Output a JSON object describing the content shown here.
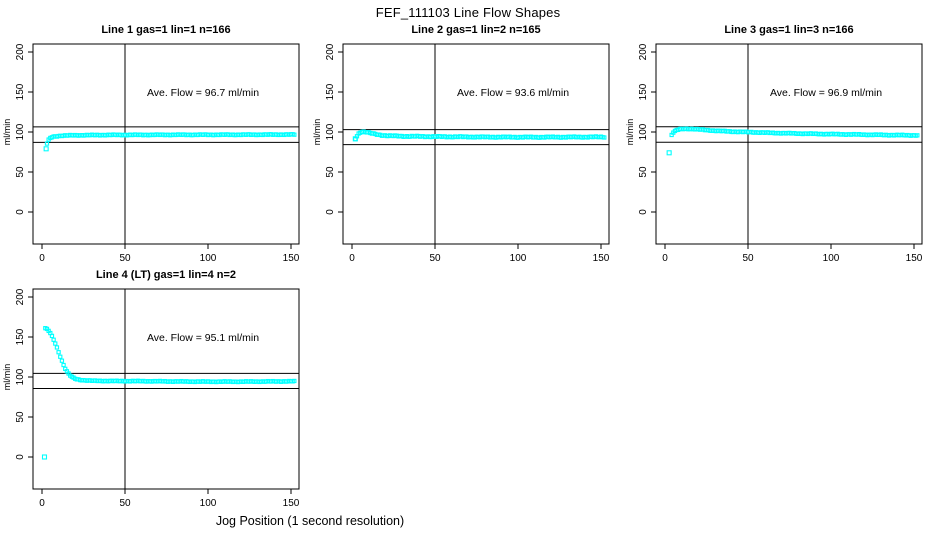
{
  "page": {
    "title": "FEF_111103  Line Flow Shapes",
    "xlabel": "Jog Position (1 second resolution)"
  },
  "style": {
    "point_color": "#00FFFF",
    "axis_color": "#000000",
    "background": "#FFFFFF"
  },
  "chart_data": [
    {
      "type": "scatter",
      "title": "Line 1 gas=1 lin=1 n=166",
      "annotation": "Ave. Flow =  96.7  ml/min",
      "ave_flow": 96.7,
      "ylabel": "ml/min",
      "x_ticks": [
        0,
        50,
        100,
        150
      ],
      "y_ticks": [
        0,
        50,
        100,
        150,
        200
      ],
      "xlim": [
        -6,
        156
      ],
      "ylim": [
        -41,
        210
      ],
      "vline_x": 50,
      "hlines": [
        106.4,
        87.0
      ],
      "marker": "open-square",
      "outliers": [
        [
          2.5,
          79
        ]
      ],
      "keypoints": [
        [
          3,
          85.5
        ],
        [
          3.5,
          88
        ],
        [
          4,
          90
        ],
        [
          5,
          92.5
        ],
        [
          6,
          93.6
        ],
        [
          8,
          94.6
        ],
        [
          12,
          95.4
        ],
        [
          20,
          95.9
        ],
        [
          40,
          96.3
        ],
        [
          80,
          96.5
        ],
        [
          120,
          96.6
        ],
        [
          152,
          96.8
        ]
      ],
      "x_range": [
        3,
        152
      ],
      "jitter": 0.55
    },
    {
      "type": "scatter",
      "title": "Line 2 gas=1 lin=2 n=165",
      "annotation": "Ave. Flow =  93.6  ml/min",
      "ave_flow": 93.6,
      "ylabel": "ml/min",
      "x_ticks": [
        0,
        50,
        100,
        150
      ],
      "y_ticks": [
        0,
        50,
        100,
        150,
        200
      ],
      "xlim": [
        -6,
        156
      ],
      "ylim": [
        -41,
        210
      ],
      "vline_x": 50,
      "hlines": [
        103.0,
        84.2
      ],
      "marker": "open-square",
      "outliers": [
        [
          2,
          91.5
        ]
      ],
      "keypoints": [
        [
          2,
          91.5
        ],
        [
          3,
          94.5
        ],
        [
          4,
          98
        ],
        [
          5,
          99.8
        ],
        [
          6,
          100.4
        ],
        [
          8,
          100.2
        ],
        [
          10,
          99.2
        ],
        [
          13,
          97.6
        ],
        [
          17,
          96.2
        ],
        [
          22,
          95.3
        ],
        [
          30,
          94.7
        ],
        [
          50,
          94.2
        ],
        [
          80,
          93.7
        ],
        [
          110,
          93.5
        ],
        [
          152,
          93.8
        ]
      ],
      "x_range": [
        2,
        152
      ],
      "jitter": 0.8
    },
    {
      "type": "scatter",
      "title": "Line 3 gas=1 lin=3 n=166",
      "annotation": "Ave. Flow =  96.9  ml/min",
      "ave_flow": 96.9,
      "ylabel": "ml/min",
      "x_ticks": [
        0,
        50,
        100,
        150
      ],
      "y_ticks": [
        0,
        50,
        100,
        150,
        200
      ],
      "xlim": [
        -6,
        156
      ],
      "ylim": [
        -41,
        210
      ],
      "vline_x": 50,
      "hlines": [
        106.6,
        87.2
      ],
      "marker": "open-square",
      "outliers": [
        [
          2.5,
          74
        ]
      ],
      "keypoints": [
        [
          3.5,
          95
        ],
        [
          5,
          99.5
        ],
        [
          7,
          102.3
        ],
        [
          9,
          103.4
        ],
        [
          12,
          104
        ],
        [
          16,
          103.9
        ],
        [
          22,
          102.9
        ],
        [
          30,
          101.6
        ],
        [
          40,
          100.5
        ],
        [
          50,
          99.9
        ],
        [
          65,
          98.8
        ],
        [
          80,
          98.1
        ],
        [
          100,
          97.3
        ],
        [
          120,
          96.7
        ],
        [
          135,
          96.2
        ],
        [
          152,
          95.8
        ]
      ],
      "x_range": [
        4,
        152
      ],
      "jitter": 0.6
    },
    {
      "type": "scatter",
      "title": "Line 4 (LT) gas=1 lin=4 n=2",
      "annotation": "Ave. Flow =  95.1  ml/min",
      "ave_flow": 95.1,
      "ylabel": "ml/min",
      "x_ticks": [
        0,
        50,
        100,
        150
      ],
      "y_ticks": [
        0,
        50,
        100,
        150,
        200
      ],
      "xlim": [
        -6,
        156
      ],
      "ylim": [
        -41,
        210
      ],
      "vline_x": 50,
      "hlines": [
        104.6,
        85.6
      ],
      "marker": "open-square",
      "outliers": [
        [
          1.5,
          0
        ]
      ],
      "keypoints": [
        [
          1.5,
          161
        ],
        [
          2.5,
          160.5
        ],
        [
          3.5,
          159
        ],
        [
          4.5,
          156.5
        ],
        [
          5.5,
          153
        ],
        [
          6.5,
          149
        ],
        [
          7.5,
          144.5
        ],
        [
          8.5,
          139.5
        ],
        [
          9.5,
          134
        ],
        [
          10.5,
          128.5
        ],
        [
          11.5,
          123
        ],
        [
          12.5,
          117.5
        ],
        [
          13.5,
          112.5
        ],
        [
          14.5,
          108.5
        ],
        [
          15.5,
          105.3
        ],
        [
          16.5,
          102.8
        ],
        [
          17.5,
          100.9
        ],
        [
          18.5,
          99.4
        ],
        [
          19.5,
          98.3
        ],
        [
          21,
          97.2
        ],
        [
          23,
          96.4
        ],
        [
          26,
          95.8
        ],
        [
          30,
          95.3
        ],
        [
          40,
          95
        ],
        [
          60,
          94.8
        ],
        [
          80,
          94.4
        ],
        [
          100,
          94.2
        ],
        [
          120,
          94.2
        ],
        [
          152,
          94.6
        ]
      ],
      "x_range": [
        2,
        152
      ],
      "jitter": 0.5
    }
  ]
}
